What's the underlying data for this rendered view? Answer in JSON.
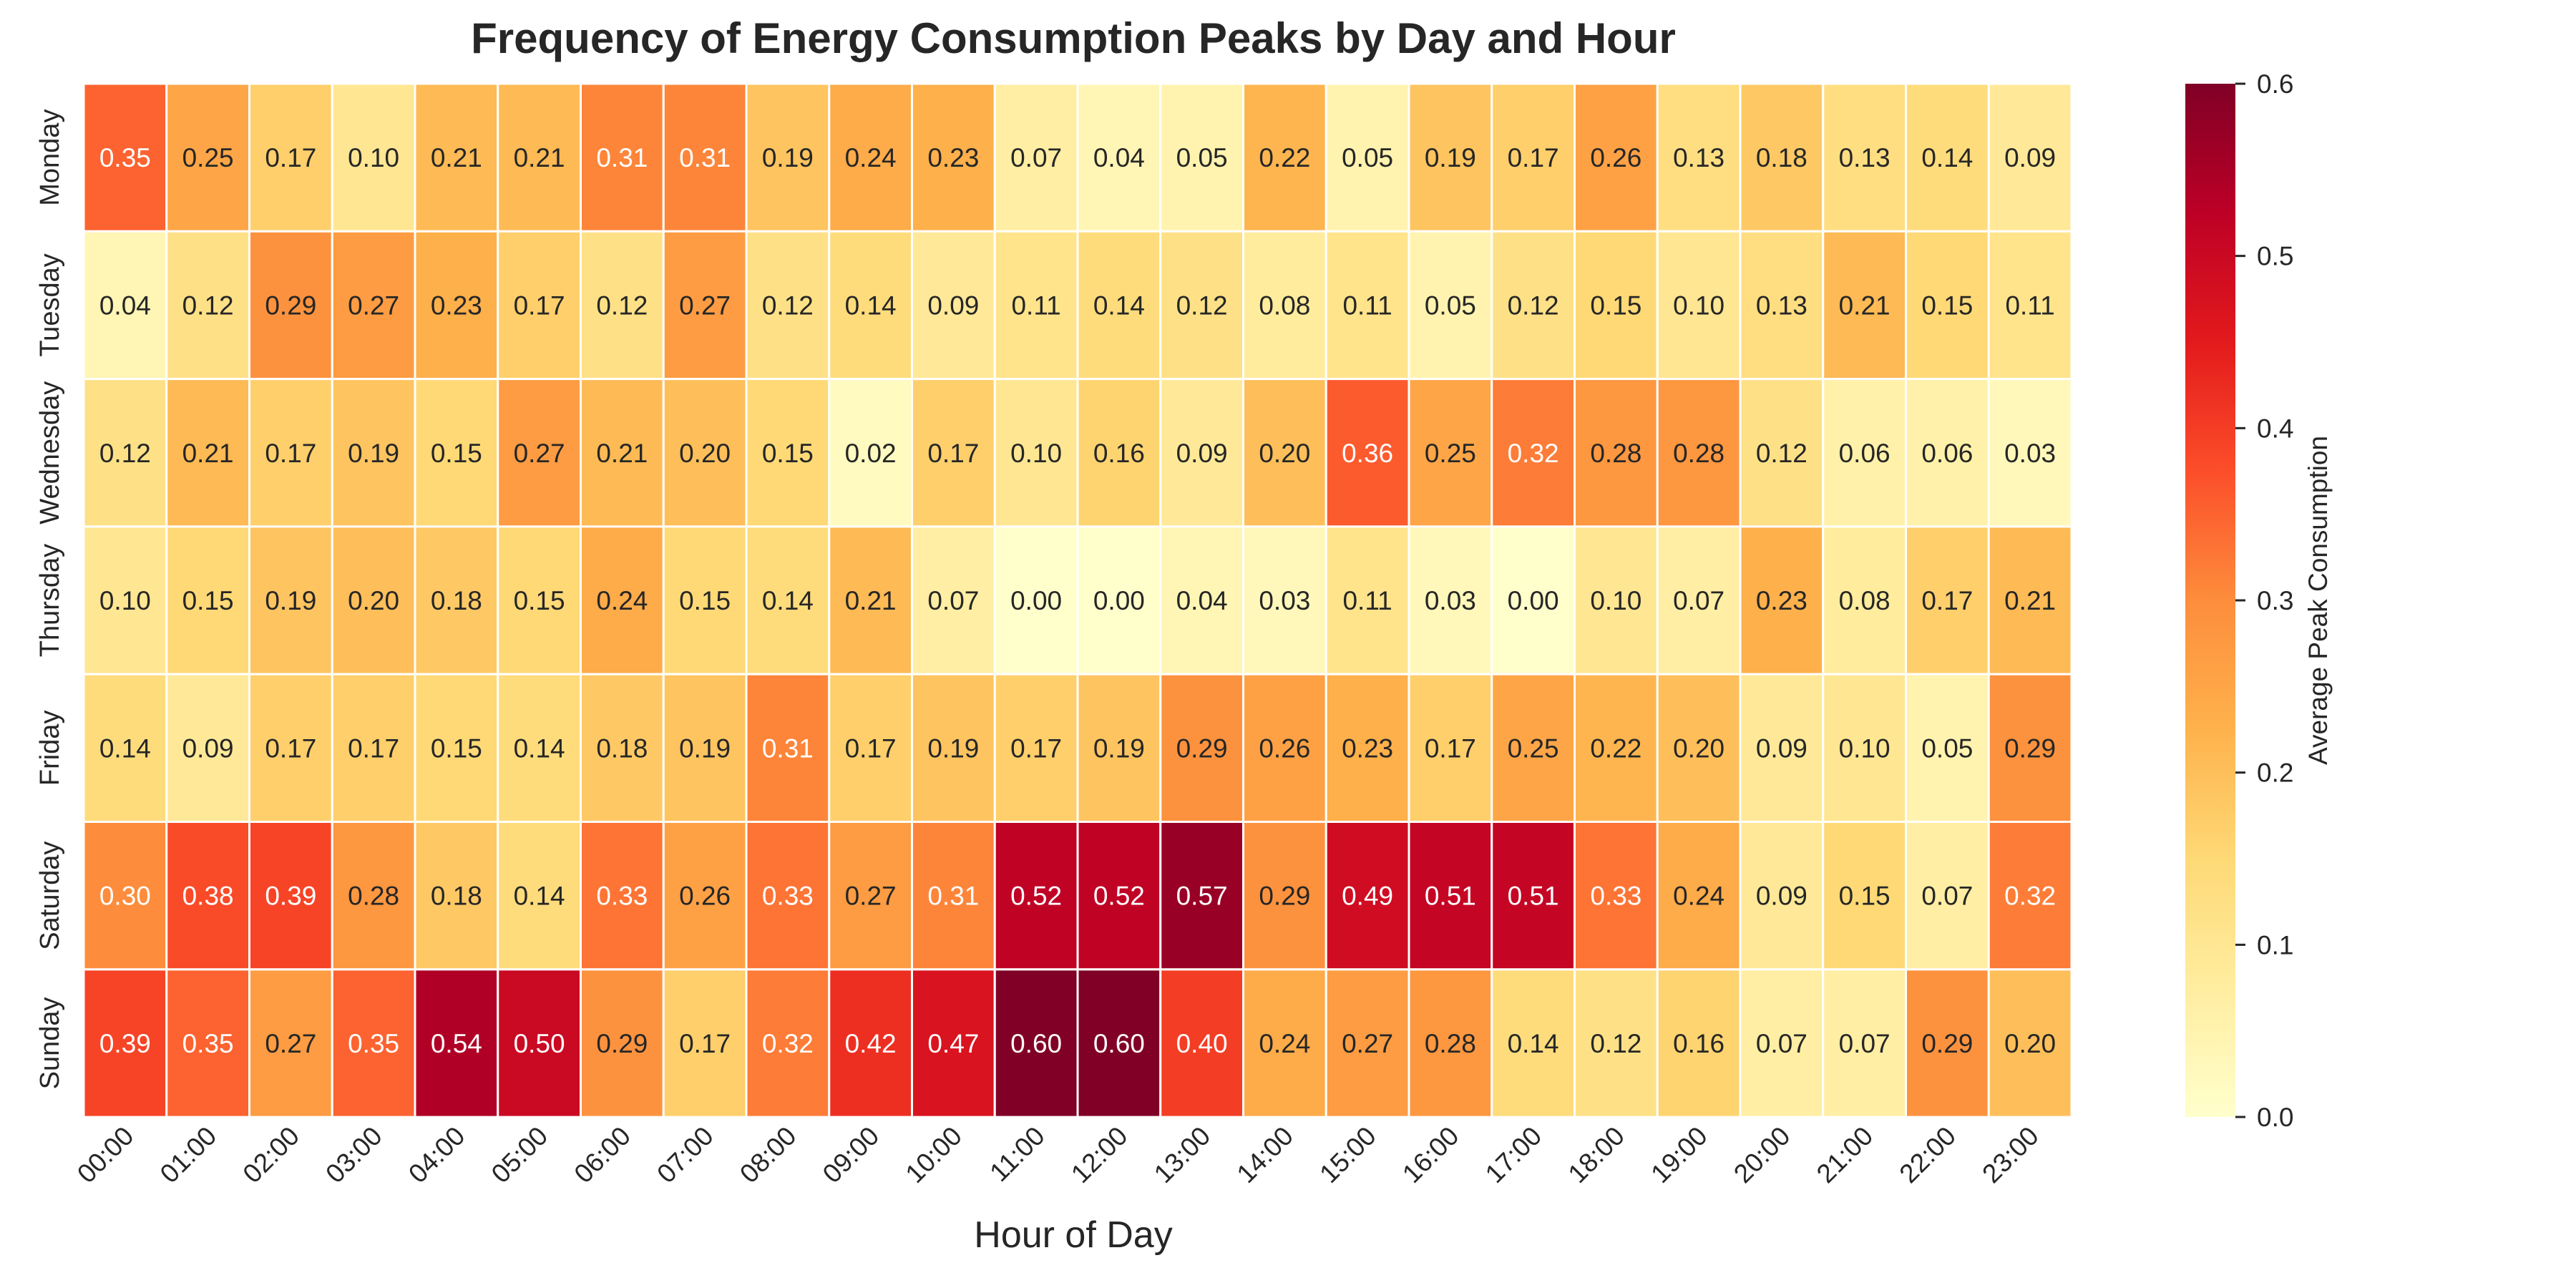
{
  "chart_data": {
    "type": "heatmap",
    "title": "Frequency of Energy Consumption Peaks by Day and Hour",
    "xlabel": "Hour of Day",
    "ylabel": "",
    "x_categories": [
      "00:00",
      "01:00",
      "02:00",
      "03:00",
      "04:00",
      "05:00",
      "06:00",
      "07:00",
      "08:00",
      "09:00",
      "10:00",
      "11:00",
      "12:00",
      "13:00",
      "14:00",
      "15:00",
      "16:00",
      "17:00",
      "18:00",
      "19:00",
      "20:00",
      "21:00",
      "22:00",
      "23:00"
    ],
    "y_categories": [
      "Monday",
      "Tuesday",
      "Wednesday",
      "Thursday",
      "Friday",
      "Saturday",
      "Sunday"
    ],
    "values": [
      [
        0.35,
        0.25,
        0.17,
        0.1,
        0.21,
        0.21,
        0.31,
        0.31,
        0.19,
        0.24,
        0.23,
        0.07,
        0.04,
        0.05,
        0.22,
        0.05,
        0.19,
        0.17,
        0.26,
        0.13,
        0.18,
        0.13,
        0.14,
        0.09
      ],
      [
        0.04,
        0.12,
        0.29,
        0.27,
        0.23,
        0.17,
        0.12,
        0.27,
        0.12,
        0.14,
        0.09,
        0.11,
        0.14,
        0.12,
        0.08,
        0.11,
        0.05,
        0.12,
        0.15,
        0.1,
        0.13,
        0.21,
        0.15,
        0.11
      ],
      [
        0.12,
        0.21,
        0.17,
        0.19,
        0.15,
        0.27,
        0.21,
        0.2,
        0.15,
        0.02,
        0.17,
        0.1,
        0.16,
        0.09,
        0.2,
        0.36,
        0.25,
        0.32,
        0.28,
        0.28,
        0.12,
        0.06,
        0.06,
        0.03
      ],
      [
        0.1,
        0.15,
        0.19,
        0.2,
        0.18,
        0.15,
        0.24,
        0.15,
        0.14,
        0.21,
        0.07,
        0.0,
        0.0,
        0.04,
        0.03,
        0.11,
        0.03,
        0.0,
        0.1,
        0.07,
        0.23,
        0.08,
        0.17,
        0.21
      ],
      [
        0.14,
        0.09,
        0.17,
        0.17,
        0.15,
        0.14,
        0.18,
        0.19,
        0.31,
        0.17,
        0.19,
        0.17,
        0.19,
        0.29,
        0.26,
        0.23,
        0.17,
        0.25,
        0.22,
        0.2,
        0.09,
        0.1,
        0.05,
        0.29
      ],
      [
        0.3,
        0.38,
        0.39,
        0.28,
        0.18,
        0.14,
        0.33,
        0.26,
        0.33,
        0.27,
        0.31,
        0.52,
        0.52,
        0.57,
        0.29,
        0.49,
        0.51,
        0.51,
        0.33,
        0.24,
        0.09,
        0.15,
        0.07,
        0.32
      ],
      [
        0.39,
        0.35,
        0.27,
        0.35,
        0.54,
        0.5,
        0.29,
        0.17,
        0.32,
        0.42,
        0.47,
        0.6,
        0.6,
        0.4,
        0.24,
        0.27,
        0.28,
        0.14,
        0.12,
        0.16,
        0.07,
        0.07,
        0.29,
        0.2
      ]
    ],
    "value_format": "2 decimals",
    "colormap": "YlOrRd",
    "colorbar": {
      "label": "Average Peak Consumption",
      "range": [
        0,
        0.6
      ],
      "ticks": [
        "0.0",
        "0.1",
        "0.2",
        "0.3",
        "0.4",
        "0.5",
        "0.6"
      ]
    },
    "grid": false,
    "legend": "colorbar-right"
  }
}
